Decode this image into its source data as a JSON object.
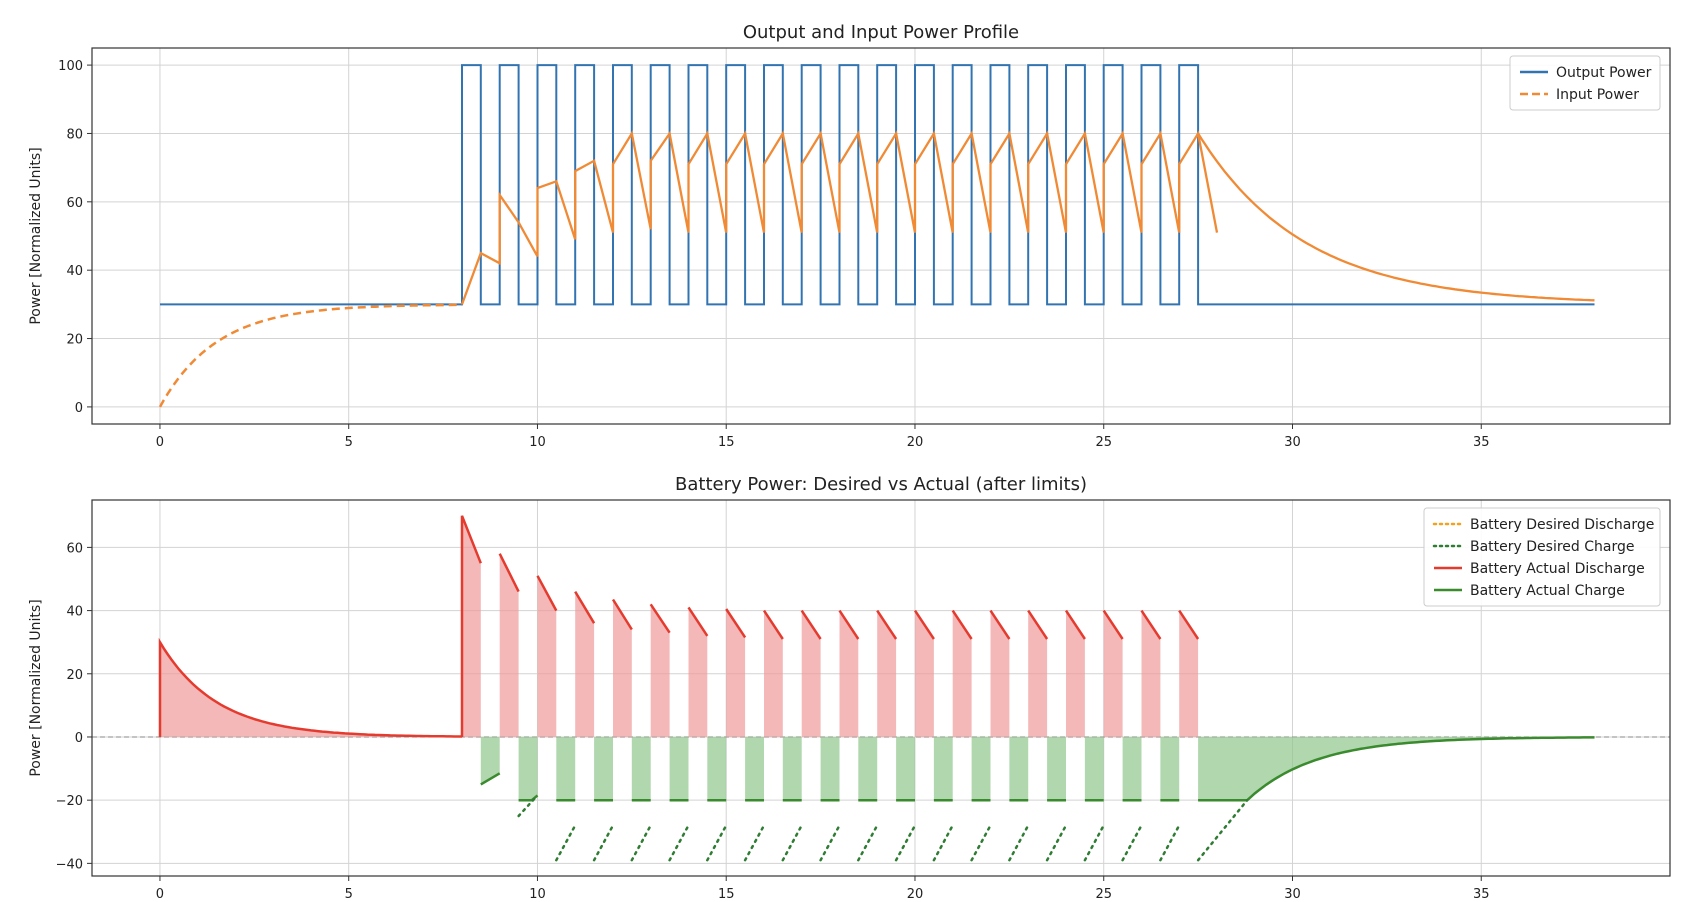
{
  "chart_data": [
    {
      "type": "line",
      "title": "Output and Input Power Profile",
      "xlabel": "",
      "ylabel": "Power [Normalized Units]",
      "xlim": [
        -1.8,
        40
      ],
      "ylim": [
        -5,
        105
      ],
      "xticks": [
        0,
        5,
        10,
        15,
        20,
        25,
        30,
        35
      ],
      "yticks": [
        0,
        20,
        40,
        60,
        80,
        100
      ],
      "grid": true,
      "legend_position": "top-right",
      "pulse_train": {
        "start": 8.0,
        "period": 1.0,
        "high_duration": 0.5,
        "count": 20,
        "low": 30,
        "high": 100,
        "end": 38
      },
      "series": [
        {
          "name": "Output Power",
          "color": "#3274b1",
          "style": "solid",
          "description_values": {
            "baseline": 30,
            "peak": 100
          }
        },
        {
          "name": "Input Power",
          "color": "#f08a35",
          "style": "dashed",
          "description_values": {
            "start": 0,
            "settle": 30,
            "ramp_peak": 80,
            "ramp_trough": 51,
            "end": 30
          }
        }
      ]
    },
    {
      "type": "area",
      "title": "Battery Power: Desired vs Actual (after limits)",
      "xlabel": "",
      "ylabel": "Power [Normalized Units]",
      "xlim": [
        -1.8,
        40
      ],
      "ylim": [
        -44,
        75
      ],
      "xticks": [
        0,
        5,
        10,
        15,
        20,
        25,
        30,
        35
      ],
      "yticks": [
        -40,
        -20,
        0,
        20,
        40,
        60
      ],
      "grid": true,
      "legend_position": "top-right",
      "charge_limit": -20,
      "series": [
        {
          "name": "Battery Desired Discharge",
          "color": "#f2a21c",
          "style": "dotted"
        },
        {
          "name": "Battery Desired Charge",
          "color": "#2e7d32",
          "style": "dotted"
        },
        {
          "name": "Battery Actual Discharge",
          "color": "#e53b2f",
          "style": "solid"
        },
        {
          "name": "Battery Actual Charge",
          "color": "#3a8a2e",
          "style": "solid"
        }
      ]
    }
  ]
}
